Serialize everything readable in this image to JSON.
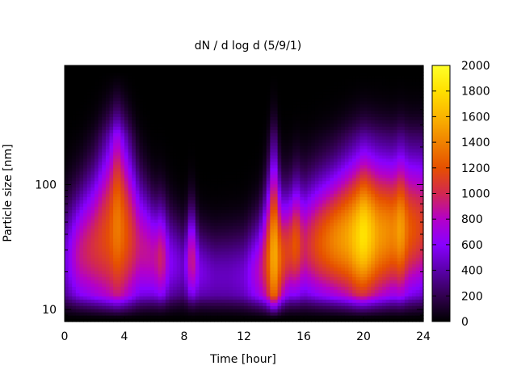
{
  "chart_data": {
    "type": "heatmap",
    "title": "dN / d log d (5/9/1)",
    "xlabel": "Time [hour]",
    "ylabel": "Particle size [nm]",
    "xlim": [
      0,
      24
    ],
    "x_ticks": [
      "0",
      "4",
      "8",
      "12",
      "16",
      "20",
      "24"
    ],
    "y_scale": "log",
    "ylim": [
      8,
      900
    ],
    "y_ticks": [
      "10",
      "100"
    ],
    "colorbar": {
      "range": [
        0,
        2000
      ],
      "ticks": [
        "0",
        "200",
        "400",
        "600",
        "800",
        "1000",
        "1200",
        "1400",
        "1600",
        "1800",
        "2000"
      ],
      "colormap": [
        "#000000",
        "#320050",
        "#5a00aa",
        "#8800ff",
        "#b400c8",
        "#d22850",
        "#e65000",
        "#f08200",
        "#fab400",
        "#ffe000",
        "#ffff28"
      ]
    },
    "time_hours": [
      0,
      1,
      2,
      3,
      3.5,
      4,
      5,
      6,
      6.5,
      7,
      8,
      8.5,
      9,
      10,
      11,
      12,
      13,
      13.5,
      14,
      14.5,
      15,
      15.5,
      16,
      17,
      18,
      19,
      19.5,
      20,
      21,
      22,
      22.5,
      23,
      24
    ],
    "peak_size_nm": [
      25,
      28,
      32,
      40,
      48,
      42,
      32,
      26,
      26,
      24,
      22,
      26,
      20,
      18,
      18,
      18,
      20,
      24,
      28,
      26,
      30,
      34,
      32,
      34,
      36,
      38,
      38,
      40,
      40,
      42,
      44,
      44,
      46
    ],
    "peak_concentration": [
      500,
      900,
      1050,
      1200,
      1400,
      1250,
      900,
      850,
      1000,
      600,
      450,
      1000,
      550,
      450,
      450,
      500,
      800,
      1100,
      1650,
      1200,
      1100,
      1250,
      950,
      1200,
      1400,
      1550,
      1700,
      1850,
      1500,
      1400,
      1550,
      1250,
      1100
    ],
    "distribution_width_decades": [
      0.32,
      0.35,
      0.42,
      0.55,
      0.62,
      0.55,
      0.38,
      0.3,
      0.3,
      0.28,
      0.24,
      0.28,
      0.24,
      0.24,
      0.25,
      0.26,
      0.3,
      0.38,
      0.55,
      0.35,
      0.32,
      0.34,
      0.34,
      0.36,
      0.38,
      0.42,
      0.44,
      0.45,
      0.44,
      0.42,
      0.43,
      0.42,
      0.42
    ]
  }
}
